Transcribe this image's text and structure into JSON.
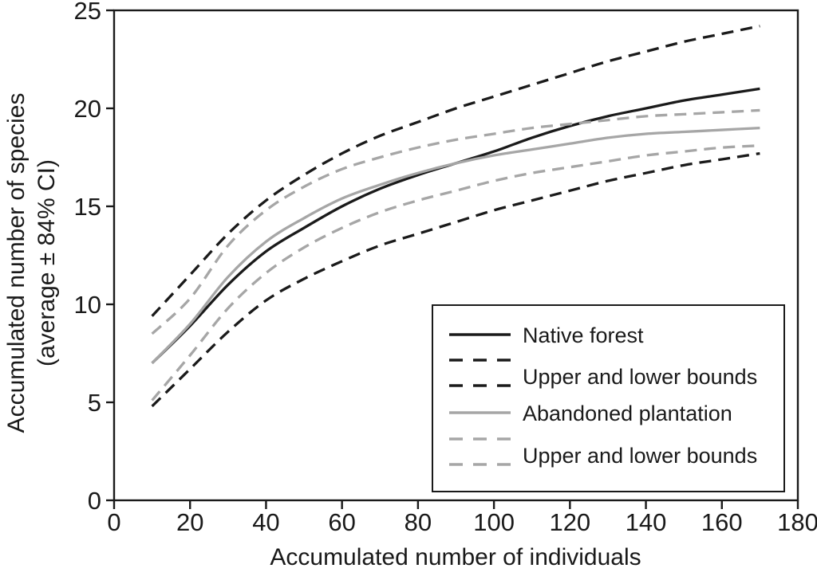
{
  "figure": {
    "background": "#ffffff",
    "axis_color": "#1a1a1a",
    "black": "#1a1a1a",
    "gray": "#a6a6a6"
  },
  "chart_data": {
    "type": "line",
    "title": "",
    "xlabel": "Accumulated number of individuals",
    "ylabel_line1": "Accumulated number of species",
    "ylabel_line2": "(average ± 84% CI)",
    "xlim": [
      0,
      180
    ],
    "ylim": [
      0,
      25
    ],
    "x_ticks": [
      0,
      20,
      40,
      60,
      80,
      100,
      120,
      140,
      160,
      180
    ],
    "y_ticks": [
      0,
      5,
      10,
      15,
      20,
      25
    ],
    "grid": false,
    "plot_border": "full-box",
    "legend_position": "lower-right-inside-box",
    "x": [
      10,
      20,
      30,
      40,
      50,
      60,
      70,
      80,
      90,
      100,
      110,
      120,
      130,
      140,
      150,
      160,
      170
    ],
    "series": [
      {
        "name": "Native forest",
        "style": "solid",
        "color": "#1a1a1a",
        "values": [
          7.0,
          8.9,
          11.0,
          12.7,
          13.9,
          15.0,
          15.9,
          16.6,
          17.2,
          17.8,
          18.5,
          19.1,
          19.6,
          20.0,
          20.4,
          20.7,
          21.0
        ]
      },
      {
        "name": "Native forest upper bound",
        "style": "dashed",
        "color": "#1a1a1a",
        "values": [
          9.4,
          11.5,
          13.6,
          15.3,
          16.6,
          17.7,
          18.6,
          19.3,
          20.0,
          20.6,
          21.2,
          21.8,
          22.4,
          22.9,
          23.4,
          23.8,
          24.2
        ]
      },
      {
        "name": "Native forest lower bound",
        "style": "dashed",
        "color": "#1a1a1a",
        "values": [
          4.8,
          6.7,
          8.6,
          10.2,
          11.3,
          12.2,
          13.0,
          13.6,
          14.2,
          14.8,
          15.3,
          15.8,
          16.3,
          16.7,
          17.1,
          17.4,
          17.7
        ]
      },
      {
        "name": "Abandoned plantation",
        "style": "solid",
        "color": "#a6a6a6",
        "values": [
          7.0,
          9.0,
          11.4,
          13.2,
          14.4,
          15.4,
          16.1,
          16.7,
          17.2,
          17.6,
          17.9,
          18.2,
          18.5,
          18.7,
          18.8,
          18.9,
          19.0
        ]
      },
      {
        "name": "Abandoned plantation upper bound",
        "style": "dashed",
        "color": "#a6a6a6",
        "values": [
          8.5,
          10.3,
          13.0,
          14.8,
          16.0,
          16.9,
          17.5,
          18.0,
          18.4,
          18.7,
          19.0,
          19.2,
          19.4,
          19.6,
          19.7,
          19.8,
          19.9
        ]
      },
      {
        "name": "Abandoned plantation lower bound",
        "style": "dashed",
        "color": "#a6a6a6",
        "values": [
          5.1,
          7.4,
          9.8,
          11.6,
          12.9,
          13.9,
          14.7,
          15.3,
          15.8,
          16.3,
          16.7,
          17.0,
          17.3,
          17.6,
          17.8,
          18.0,
          18.1
        ]
      }
    ],
    "legend": [
      {
        "label": "Native forest",
        "color": "#1a1a1a",
        "symbol": "solid"
      },
      {
        "label": "Upper and lower bounds",
        "color": "#1a1a1a",
        "symbol": "double-dashed"
      },
      {
        "label": "Abandoned plantation",
        "color": "#a6a6a6",
        "symbol": "solid"
      },
      {
        "label": "Upper and lower bounds",
        "color": "#a6a6a6",
        "symbol": "double-dashed"
      }
    ]
  }
}
